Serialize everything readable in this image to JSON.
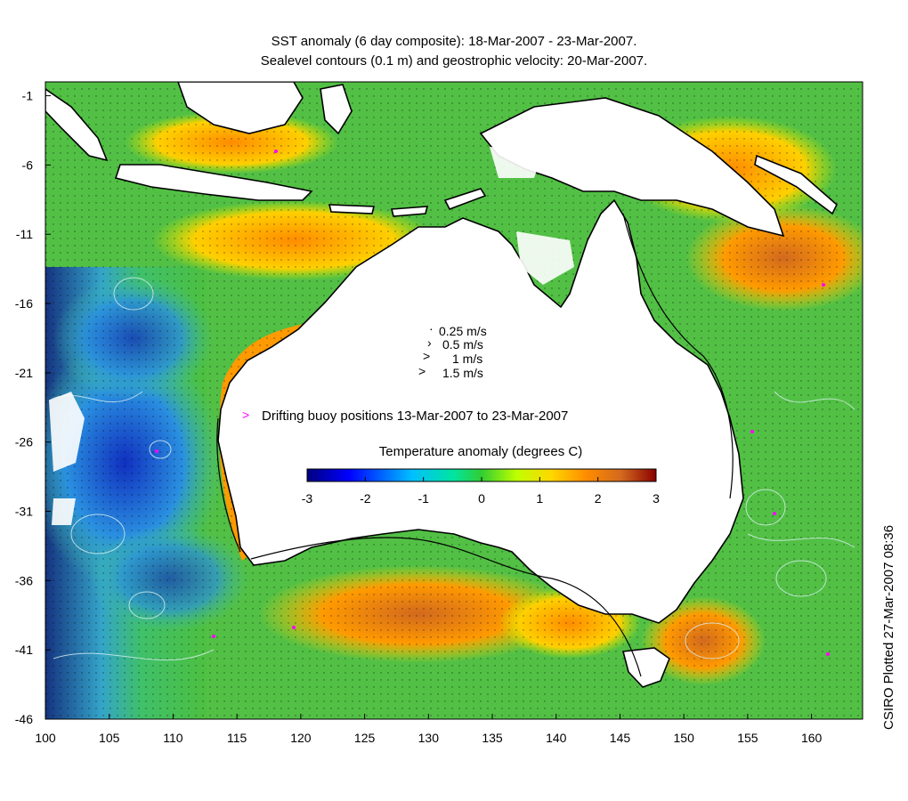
{
  "title_line1": "SST anomaly (6 day composite): 18-Mar-2007 - 23-Mar-2007.",
  "title_line2": "Sealevel contours (0.1 m) and geostrophic velocity: 20-Mar-2007.",
  "side_label": "CSIRO Plotted 27-Mar-2007 08:36",
  "chart_data": {
    "type": "heatmap",
    "x_ticks": [
      100,
      105,
      110,
      115,
      120,
      125,
      130,
      135,
      140,
      145,
      150,
      155,
      160
    ],
    "y_ticks": [
      -1,
      -6,
      -11,
      -16,
      -21,
      -26,
      -31,
      -36,
      -41,
      -46
    ],
    "xlim": [
      100,
      164
    ],
    "ylim": [
      -46,
      0
    ],
    "velocity_legend": [
      "0.25 m/s",
      "0.5 m/s",
      "1 m/s",
      "1.5 m/s"
    ],
    "buoy_legend": "Drifting buoy positions 13-Mar-2007 to 23-Mar-2007",
    "colorbar": {
      "title": "Temperature anomaly (degrees C)",
      "ticks": [
        -3,
        -2,
        -1,
        0,
        1,
        2,
        3
      ],
      "range": [
        -3,
        3
      ],
      "colors": [
        "#00007f",
        "#0000ff",
        "#00bfff",
        "#00e5a0",
        "#32cd32",
        "#bfff00",
        "#ffd700",
        "#ff8c00",
        "#d2691e",
        "#8b0000"
      ]
    }
  },
  "colors": {
    "land": "#ffffff",
    "coast": "#000000",
    "contour": "#cfe8e8",
    "buoy": "#ff00ff"
  }
}
